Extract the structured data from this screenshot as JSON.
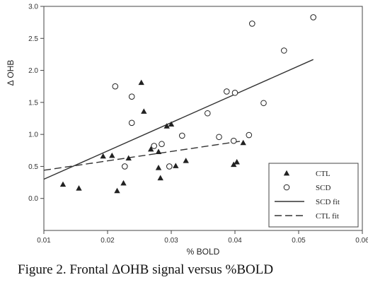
{
  "caption": "Figure 2. Frontal ΔOHB signal versus %BOLD",
  "chart_data": {
    "type": "scatter",
    "title": "",
    "xlabel": "% BOLD",
    "ylabel": "Δ OHB",
    "xlim": [
      0.01,
      0.06
    ],
    "ylim": [
      -0.5,
      3.0
    ],
    "xticks": [
      "0.01",
      "0.02",
      "0.03",
      "0.04",
      "0.05",
      "0.06"
    ],
    "yticks": [
      "0.0",
      "0.5",
      "1.0",
      "1.5",
      "2.0",
      "2.5",
      "3.0"
    ],
    "grid": false,
    "legend_position": "bottom-right",
    "series": [
      {
        "name": "CTL",
        "marker": "triangle",
        "color": "#222222",
        "points": [
          [
            0.013,
            0.22
          ],
          [
            0.0155,
            0.16
          ],
          [
            0.0193,
            0.66
          ],
          [
            0.0207,
            0.67
          ],
          [
            0.0215,
            0.12
          ],
          [
            0.0225,
            0.24
          ],
          [
            0.0233,
            0.63
          ],
          [
            0.0253,
            1.81
          ],
          [
            0.0257,
            1.36
          ],
          [
            0.0268,
            0.77
          ],
          [
            0.028,
            0.73
          ],
          [
            0.028,
            0.48
          ],
          [
            0.0283,
            0.32
          ],
          [
            0.0293,
            1.13
          ],
          [
            0.03,
            1.16
          ],
          [
            0.0307,
            0.51
          ],
          [
            0.0323,
            0.59
          ],
          [
            0.0398,
            0.53
          ],
          [
            0.0403,
            0.57
          ],
          [
            0.0413,
            0.87
          ]
        ]
      },
      {
        "name": "SCD",
        "marker": "circle",
        "color": "#222222",
        "points": [
          [
            0.0212,
            1.75
          ],
          [
            0.0227,
            0.5
          ],
          [
            0.0238,
            1.59
          ],
          [
            0.0238,
            1.18
          ],
          [
            0.0273,
            0.82
          ],
          [
            0.0285,
            0.85
          ],
          [
            0.0297,
            0.5
          ],
          [
            0.0317,
            0.98
          ],
          [
            0.0357,
            1.33
          ],
          [
            0.0375,
            0.96
          ],
          [
            0.0387,
            1.67
          ],
          [
            0.0398,
            0.9
          ],
          [
            0.04,
            1.65
          ],
          [
            0.0422,
            0.99
          ],
          [
            0.0427,
            2.73
          ],
          [
            0.0445,
            1.49
          ],
          [
            0.0477,
            2.31
          ],
          [
            0.0523,
            2.83
          ]
        ]
      }
    ],
    "fit_lines": [
      {
        "name": "SCD fit",
        "style": "solid",
        "color": "#333333",
        "x": [
          0.01,
          0.0523
        ],
        "y": [
          0.3,
          2.17
        ]
      },
      {
        "name": "CTL fit",
        "style": "dashed",
        "color": "#333333",
        "x": [
          0.01,
          0.0413
        ],
        "y": [
          0.44,
          0.9
        ]
      }
    ],
    "legend": [
      "CTL",
      "SCD",
      "SCD fit",
      "CTL fit"
    ]
  }
}
